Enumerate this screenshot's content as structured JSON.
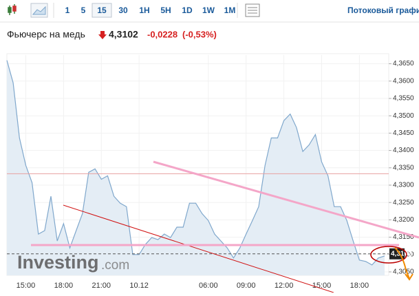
{
  "toolbar": {
    "intervals": [
      "1",
      "5",
      "15",
      "30",
      "1H",
      "5H",
      "1D",
      "1W",
      "1M"
    ],
    "selected_interval": "15",
    "stream_link": "Потоковый графи"
  },
  "header": {
    "title": "Фьючерс на медь",
    "price": "4,3102",
    "change": "-0,0228",
    "change_percent": "(-0,53%)"
  },
  "watermark": {
    "brand": "Investing",
    "suffix": ".com"
  },
  "chart_data": {
    "type": "area",
    "color": "#7fa7cc",
    "fill": "#e4edf5",
    "grid": true,
    "categories": [
      null,
      null,
      null,
      "15:00",
      null,
      null,
      null,
      null,
      null,
      "18:00",
      null,
      null,
      null,
      null,
      null,
      "21:00",
      null,
      null,
      null,
      null,
      null,
      "10.12",
      null,
      null,
      null,
      null,
      null,
      null,
      null,
      null,
      null,
      null,
      "06:00",
      null,
      null,
      null,
      null,
      null,
      "09:00",
      null,
      null,
      null,
      null,
      null,
      "12:00",
      null,
      null,
      null,
      null,
      null,
      "15:00",
      null,
      null,
      null,
      null,
      null,
      "18:00",
      null,
      null,
      null,
      null
    ],
    "values": [
      4.366,
      4.3595,
      4.3436,
      4.3357,
      4.3307,
      4.3159,
      4.3169,
      4.3268,
      4.3139,
      4.3189,
      4.3119,
      4.3169,
      4.3218,
      4.3337,
      4.3347,
      4.3317,
      4.3327,
      4.3268,
      4.3248,
      4.3238,
      4.31,
      4.31,
      4.3129,
      4.3149,
      4.3143,
      4.3159,
      4.3149,
      4.3179,
      4.3179,
      4.3248,
      4.3248,
      4.3218,
      4.3198,
      4.3159,
      4.3139,
      4.3119,
      4.309,
      4.3119,
      4.3159,
      4.3198,
      4.3238,
      4.3357,
      4.3436,
      4.3436,
      4.3486,
      4.3505,
      4.3466,
      4.3397,
      4.3416,
      4.3446,
      4.3367,
      4.3327,
      4.3238,
      4.3238,
      4.3198,
      4.3139,
      4.3084,
      4.308,
      4.307,
      4.309,
      4.3096
    ],
    "ylim": [
      4.304,
      4.3675
    ],
    "yticks": [
      {
        "value": 4.305,
        "label": "4,3050"
      },
      {
        "value": 4.31,
        "label": "4,3100"
      },
      {
        "value": 4.315,
        "label": "4,3150"
      },
      {
        "value": 4.32,
        "label": "4,3200"
      },
      {
        "value": 4.325,
        "label": "4,3250"
      },
      {
        "value": 4.33,
        "label": "4,3300"
      },
      {
        "value": 4.335,
        "label": "4,3350"
      },
      {
        "value": 4.34,
        "label": "4,3400"
      },
      {
        "value": 4.345,
        "label": "4,3450"
      },
      {
        "value": 4.35,
        "label": "4,3500"
      },
      {
        "value": 4.355,
        "label": "4,3550"
      },
      {
        "value": 4.36,
        "label": "4,3600"
      },
      {
        "value": 4.365,
        "label": "4,3650"
      }
    ],
    "reference_line": 4.3333,
    "last_value": {
      "value": 4.3102,
      "label": "4,3102"
    }
  }
}
